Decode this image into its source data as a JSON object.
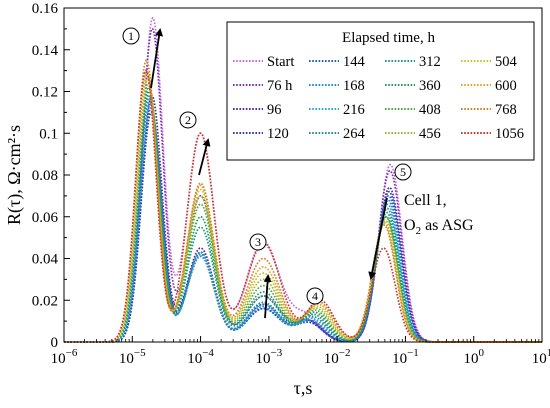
{
  "chart_data": {
    "type": "line",
    "xlabel": "τ,s",
    "ylabel": "R(τ), Ω·cm²·s",
    "xscale": "log",
    "xlim": [
      1e-06,
      10
    ],
    "ylim": [
      0,
      0.16
    ],
    "x_tick_values": [
      1e-06,
      1e-05,
      0.0001,
      0.001,
      0.01,
      0.1,
      1,
      10
    ],
    "x_tick_labels": [
      {
        "base": "10",
        "exp": "−6"
      },
      {
        "base": "10",
        "exp": "−5"
      },
      {
        "base": "10",
        "exp": "−4"
      },
      {
        "base": "10",
        "exp": "−3"
      },
      {
        "base": "10",
        "exp": "−2"
      },
      {
        "base": "10",
        "exp": "−1"
      },
      {
        "base": "10",
        "exp": "0"
      },
      {
        "base": "10",
        "exp": "1"
      }
    ],
    "y_tick_values": [
      0,
      0.02,
      0.04,
      0.06,
      0.08,
      0.1,
      0.12,
      0.14,
      0.16
    ],
    "y_tick_labels": [
      "0",
      "0.02",
      "0.04",
      "0.06",
      "0.08",
      "0.1",
      "0.12",
      "0.14",
      "0.16"
    ],
    "grid": false,
    "legend": {
      "title": "Elapsed time, h",
      "placement": "top-right",
      "columns": 3
    },
    "peak_positions_log10_tau": [
      -4.75,
      -4.0,
      -3.1,
      -2.45,
      -1.22
    ],
    "series": [
      {
        "name": "Start",
        "color": "#c26bd6",
        "peaks": [
          0.155,
          0.1,
          0.047,
          0.012,
          0.085
        ]
      },
      {
        "name": "76 h",
        "color": "#7a2fb8",
        "peaks": [
          0.15,
          0.07,
          0.022,
          0.01,
          0.082
        ]
      },
      {
        "name": "96",
        "color": "#4a2a9a",
        "peaks": [
          0.118,
          0.045,
          0.018,
          0.01,
          0.074
        ]
      },
      {
        "name": "120",
        "color": "#2a3aa8",
        "peaks": [
          0.11,
          0.043,
          0.016,
          0.009,
          0.072
        ]
      },
      {
        "name": "144",
        "color": "#1f5fc4",
        "peaks": [
          0.112,
          0.042,
          0.016,
          0.01,
          0.07
        ]
      },
      {
        "name": "168",
        "color": "#1f86d8",
        "peaks": [
          0.114,
          0.041,
          0.017,
          0.01,
          0.068
        ]
      },
      {
        "name": "216",
        "color": "#2ba6d4",
        "peaks": [
          0.116,
          0.042,
          0.018,
          0.011,
          0.066
        ]
      },
      {
        "name": "264",
        "color": "#1e8a96",
        "peaks": [
          0.118,
          0.043,
          0.019,
          0.012,
          0.064
        ]
      },
      {
        "name": "312",
        "color": "#189a7c",
        "peaks": [
          0.12,
          0.055,
          0.022,
          0.013,
          0.062
        ]
      },
      {
        "name": "360",
        "color": "#1e9a5a",
        "peaks": [
          0.122,
          0.06,
          0.024,
          0.014,
          0.06
        ]
      },
      {
        "name": "408",
        "color": "#4fa83c",
        "peaks": [
          0.124,
          0.066,
          0.027,
          0.015,
          0.06
        ]
      },
      {
        "name": "456",
        "color": "#9ab82e",
        "peaks": [
          0.126,
          0.07,
          0.03,
          0.016,
          0.058
        ]
      },
      {
        "name": "504",
        "color": "#c7c12e",
        "peaks": [
          0.128,
          0.073,
          0.033,
          0.017,
          0.058
        ]
      },
      {
        "name": "600",
        "color": "#e0a526",
        "peaks": [
          0.13,
          0.075,
          0.036,
          0.018,
          0.057
        ]
      },
      {
        "name": "768",
        "color": "#d2832a",
        "peaks": [
          0.135,
          0.076,
          0.04,
          0.019,
          0.056
        ]
      },
      {
        "name": "1056",
        "color": "#c73a2c",
        "peaks": [
          0.13,
          0.1,
          0.048,
          0.02,
          0.045
        ]
      }
    ],
    "annotations": {
      "peak_markers": [
        "1",
        "2",
        "3",
        "4",
        "5"
      ],
      "cell_label_line1": "Cell 1,",
      "cell_label_line2_pre": "O",
      "cell_label_line2_sub": "2",
      "cell_label_line2_post": " as ASG"
    }
  }
}
